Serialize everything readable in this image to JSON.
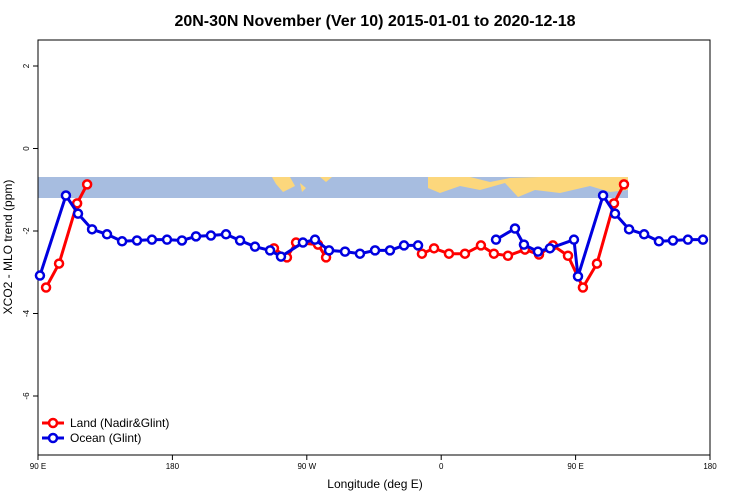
{
  "chart_data": {
    "type": "line",
    "title": "20N-30N November (Ver 10)   2015-01-01 to 2020-12-18",
    "x_label": "Longitude (deg E)",
    "y_label": "XCO2 - MLO trend (ppm)",
    "xlim": [
      90,
      540
    ],
    "ylim": [
      -7.43,
      2.63
    ],
    "xticks": [
      {
        "value": 90,
        "label": "90 E"
      },
      180,
      {
        "value": 270,
        "label": "90 W"
      },
      {
        "value": 360,
        "label": "0"
      },
      {
        "value": 450,
        "label": "90 E"
      },
      {
        "value": 540,
        "label": "180"
      }
    ],
    "yticks": [
      2,
      0,
      -2,
      -4,
      -6
    ],
    "legend": "bottom-left",
    "series": [
      {
        "name": "Land (Nadir&Glint)",
        "color": "#ff0000",
        "x": [
          95.4,
          104.1,
          116.2,
          122.9,
          null,
          248.0,
          256.7,
          262.8,
          277.5,
          282.9,
          null,
          347.1,
          355.2,
          365.2,
          375.9,
          386.6,
          395.3,
          404.7,
          416.1,
          425.5,
          434.8,
          444.9,
          454.9,
          464.3,
          475.7,
          482.4
        ],
        "values": [
          -3.37,
          -2.79,
          -1.33,
          -0.87,
          null,
          -2.42,
          -2.64,
          -2.28,
          -2.33,
          -2.64,
          null,
          -2.55,
          -2.42,
          -2.55,
          -2.55,
          -2.35,
          -2.55,
          -2.6,
          -2.45,
          -2.57,
          -2.35,
          -2.6,
          -3.37,
          -2.79,
          -1.33,
          -0.87
        ]
      },
      {
        "name": "Ocean (Glint)",
        "color": "#0000e0",
        "x": [
          91.3,
          108.7,
          116.8,
          126.2,
          136.2,
          146.3,
          156.3,
          166.3,
          176.4,
          186.4,
          195.8,
          205.8,
          215.9,
          225.3,
          235.3,
          245.4,
          252.7,
          267.4,
          275.5,
          284.9,
          295.6,
          305.6,
          315.7,
          325.7,
          335.1,
          344.5,
          null,
          396.7,
          409.4,
          415.4,
          424.8,
          432.8,
          448.9,
          451.6,
          468.4,
          476.4,
          485.8,
          495.9,
          505.8,
          515.2,
          525.2,
          535.3
        ],
        "values": [
          -3.08,
          -1.14,
          -1.58,
          -1.96,
          -2.08,
          -2.25,
          -2.23,
          -2.21,
          -2.21,
          -2.23,
          -2.13,
          -2.11,
          -2.08,
          -2.23,
          -2.38,
          -2.47,
          -2.62,
          -2.28,
          -2.21,
          -2.47,
          -2.5,
          -2.55,
          -2.47,
          -2.47,
          -2.35,
          -2.35,
          null,
          -2.21,
          -1.94,
          -2.33,
          -2.5,
          -2.42,
          -2.21,
          -3.1,
          -1.14,
          -1.58,
          -1.96,
          -2.08,
          -2.25,
          -2.23,
          -2.21,
          -2.21
        ]
      }
    ]
  }
}
